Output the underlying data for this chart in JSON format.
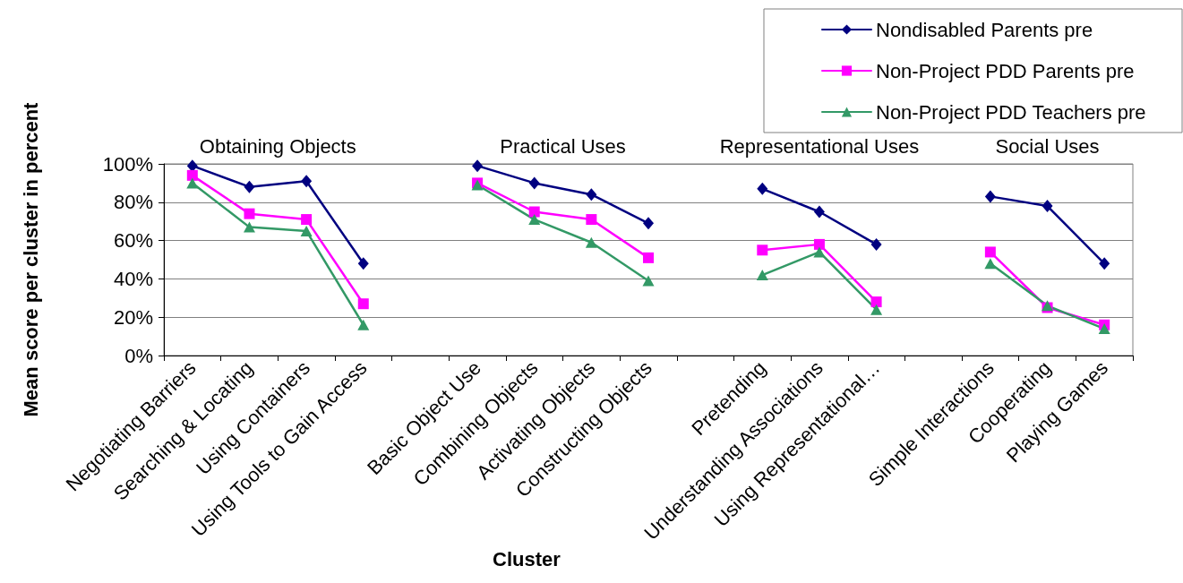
{
  "chart_data": {
    "type": "line",
    "ylabel": "Mean score per cluster in percent",
    "xlabel": "Cluster",
    "annotations": [
      "Obtaining Objects",
      "Practical Uses",
      "Representational Uses",
      "Social Uses"
    ],
    "categories": [
      "Negotiating Barriers",
      "Searching & Locating",
      "Using Containers",
      "Using Tools to Gain Access",
      null,
      "Basic Object Use",
      "Combining Objects",
      "Activating Objects",
      "Constructing Objects",
      null,
      "Pretending",
      "Understanding Associations",
      "Using Representational…",
      null,
      "Simple Interactions",
      "Cooperating",
      "Playing Games"
    ],
    "series": [
      {
        "name": "Nondisabled Parents pre",
        "color": "#000080",
        "marker": "diamond",
        "values": [
          99,
          88,
          91,
          48,
          null,
          99,
          90,
          84,
          69,
          null,
          87,
          75,
          58,
          null,
          83,
          78,
          48
        ]
      },
      {
        "name": "Non-Project PDD Parents pre",
        "color": "#ff00ff",
        "marker": "square",
        "values": [
          94,
          74,
          71,
          27,
          null,
          90,
          75,
          71,
          51,
          null,
          55,
          58,
          28,
          null,
          54,
          25,
          16
        ]
      },
      {
        "name": "Non-Project PDD Teachers pre",
        "color": "#339966",
        "marker": "triangle",
        "values": [
          90,
          67,
          65,
          16,
          null,
          89,
          71,
          59,
          39,
          null,
          42,
          54,
          24,
          null,
          48,
          26,
          14
        ]
      }
    ],
    "ylim": [
      0,
      100
    ],
    "yticks": [
      {
        "value": 0,
        "label": "0%"
      },
      {
        "value": 20,
        "label": "20%"
      },
      {
        "value": 40,
        "label": "40%"
      },
      {
        "value": 60,
        "label": "60%"
      },
      {
        "value": 80,
        "label": "80%"
      },
      {
        "value": 100,
        "label": "100%"
      }
    ],
    "grid": "y",
    "legend": "top right",
    "line_style": "solid"
  }
}
